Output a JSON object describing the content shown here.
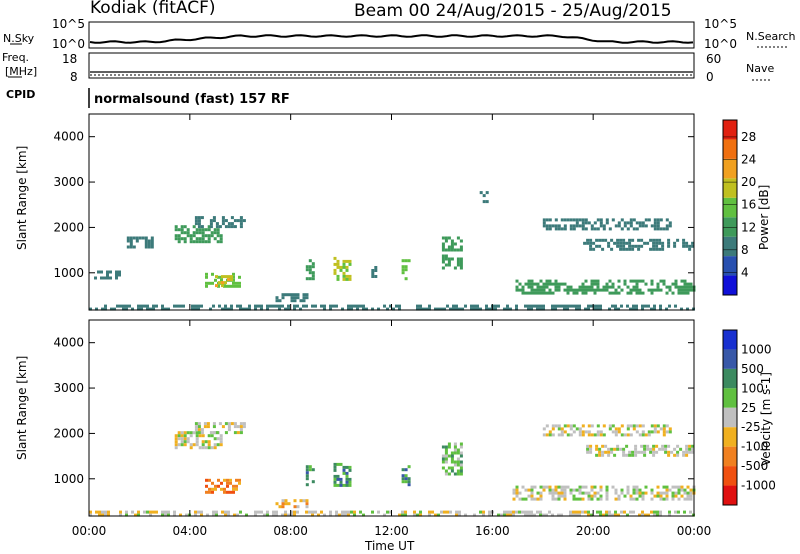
{
  "header": {
    "station": "Kodiak (fitACF)",
    "beam_dates": "Beam 00  24/Aug/2015 - 25/Aug/2015"
  },
  "top_panels": {
    "nsky_label": "N.Sky",
    "nsearch_label": "N.Search",
    "nsky_ticks": [
      "10^5",
      "10^0"
    ],
    "nsearch_ticks": [
      "10^5",
      "10^0"
    ],
    "freq_label_1": "Freq.",
    "freq_label_2": "[MHz]",
    "freq_ticks": [
      "18",
      "8"
    ],
    "nave_label": "Nave",
    "nave_ticks": [
      "60",
      "0"
    ],
    "cpid_label": "CPID",
    "cpid_text": "normalsound (fast) 157 RF"
  },
  "chart_data": [
    {
      "type": "heatmap",
      "name": "power-panel",
      "ylabel": "Slant Range [km]",
      "xlabel": "",
      "x_ticks": [
        "00:00",
        "04:00",
        "08:00",
        "12:00",
        "16:00",
        "20:00",
        "00:00"
      ],
      "xlim": [
        0,
        24
      ],
      "ylim": [
        180,
        4500
      ],
      "y_ticks": [
        1000,
        2000,
        3000,
        4000
      ],
      "colorbar": {
        "label": "Power [dB]",
        "range": [
          0,
          31
        ],
        "ticks": [
          4,
          8,
          12,
          16,
          20,
          24,
          28
        ],
        "colors": [
          "#1010d8",
          "#2850b0",
          "#3c7a7a",
          "#3e9a5a",
          "#60c040",
          "#c0c020",
          "#f0a020",
          "#f07010",
          "#e02010"
        ]
      },
      "echo_regions": [
        {
          "t0": 0.0,
          "t1": 24.0,
          "r0": 180,
          "r1": 300,
          "v": 8
        },
        {
          "t0": 0.2,
          "t1": 1.2,
          "r0": 900,
          "r1": 1050,
          "v": 8
        },
        {
          "t0": 1.5,
          "t1": 2.5,
          "r0": 1600,
          "r1": 1800,
          "v": 8
        },
        {
          "t0": 3.4,
          "t1": 5.2,
          "r0": 1700,
          "r1": 2050,
          "v": 12
        },
        {
          "t0": 4.2,
          "t1": 6.2,
          "r0": 2000,
          "r1": 2250,
          "v": 8
        },
        {
          "t0": 4.6,
          "t1": 6.0,
          "r0": 700,
          "r1": 1000,
          "v": 16
        },
        {
          "t0": 5.0,
          "t1": 5.6,
          "r0": 750,
          "r1": 950,
          "v": 20
        },
        {
          "t0": 7.4,
          "t1": 8.6,
          "r0": 400,
          "r1": 550,
          "v": 8
        },
        {
          "t0": 8.6,
          "t1": 8.9,
          "r0": 900,
          "r1": 1300,
          "v": 12
        },
        {
          "t0": 9.7,
          "t1": 10.4,
          "r0": 850,
          "r1": 1350,
          "v": 18
        },
        {
          "t0": 11.2,
          "t1": 11.4,
          "r0": 950,
          "r1": 1150,
          "v": 8
        },
        {
          "t0": 12.4,
          "t1": 12.7,
          "r0": 900,
          "r1": 1300,
          "v": 16
        },
        {
          "t0": 14.0,
          "t1": 14.8,
          "r0": 1100,
          "r1": 1800,
          "v": 12
        },
        {
          "t0": 15.5,
          "t1": 15.8,
          "r0": 2600,
          "r1": 2800,
          "v": 8
        },
        {
          "t0": 16.8,
          "t1": 24.0,
          "r0": 550,
          "r1": 850,
          "v": 12
        },
        {
          "t0": 19.6,
          "t1": 24.0,
          "r0": 1500,
          "r1": 1750,
          "v": 8
        },
        {
          "t0": 18.0,
          "t1": 23.0,
          "r0": 2000,
          "r1": 2200,
          "v": 8
        }
      ]
    },
    {
      "type": "heatmap",
      "name": "velocity-panel",
      "ylabel": "Slant Range [km]",
      "xlabel": "Time UT",
      "x_ticks": [
        "00:00",
        "04:00",
        "08:00",
        "12:00",
        "16:00",
        "20:00",
        "00:00"
      ],
      "xlim": [
        0,
        24
      ],
      "ylim": [
        180,
        4500
      ],
      "y_ticks": [
        1000,
        2000,
        3000,
        4000
      ],
      "colorbar": {
        "label": "Velocity [m s-1]",
        "tick_labels": [
          "1000",
          "500",
          "100",
          "25",
          "-25",
          "-100",
          "-500",
          "-1000"
        ],
        "colors": [
          "#1830d0",
          "#3858a8",
          "#3c8a60",
          "#60c040",
          "#c0c0c0",
          "#f0b020",
          "#f08020",
          "#f05010",
          "#e01010"
        ]
      },
      "echo_regions": [
        {
          "t0": 0.0,
          "t1": 24.0,
          "r0": 180,
          "r1": 300,
          "v": 4
        },
        {
          "t0": 3.4,
          "t1": 5.2,
          "r0": 1700,
          "r1": 2050,
          "v": 4
        },
        {
          "t0": 4.2,
          "t1": 6.2,
          "r0": 2000,
          "r1": 2250,
          "v": 4
        },
        {
          "t0": 4.6,
          "t1": 6.0,
          "r0": 700,
          "r1": 1000,
          "v": 6
        },
        {
          "t0": 7.4,
          "t1": 8.6,
          "r0": 400,
          "r1": 550,
          "v": 5
        },
        {
          "t0": 8.6,
          "t1": 8.9,
          "r0": 900,
          "r1": 1300,
          "v": 2
        },
        {
          "t0": 9.7,
          "t1": 10.4,
          "r0": 850,
          "r1": 1350,
          "v": 2
        },
        {
          "t0": 12.4,
          "t1": 12.7,
          "r0": 900,
          "r1": 1300,
          "v": 2
        },
        {
          "t0": 14.0,
          "t1": 14.8,
          "r0": 1100,
          "r1": 1800,
          "v": 3
        },
        {
          "t0": 16.8,
          "t1": 24.0,
          "r0": 550,
          "r1": 850,
          "v": 4
        },
        {
          "t0": 19.6,
          "t1": 24.0,
          "r0": 1500,
          "r1": 1750,
          "v": 4
        },
        {
          "t0": 18.0,
          "t1": 23.0,
          "r0": 2000,
          "r1": 2200,
          "v": 4
        }
      ]
    }
  ]
}
